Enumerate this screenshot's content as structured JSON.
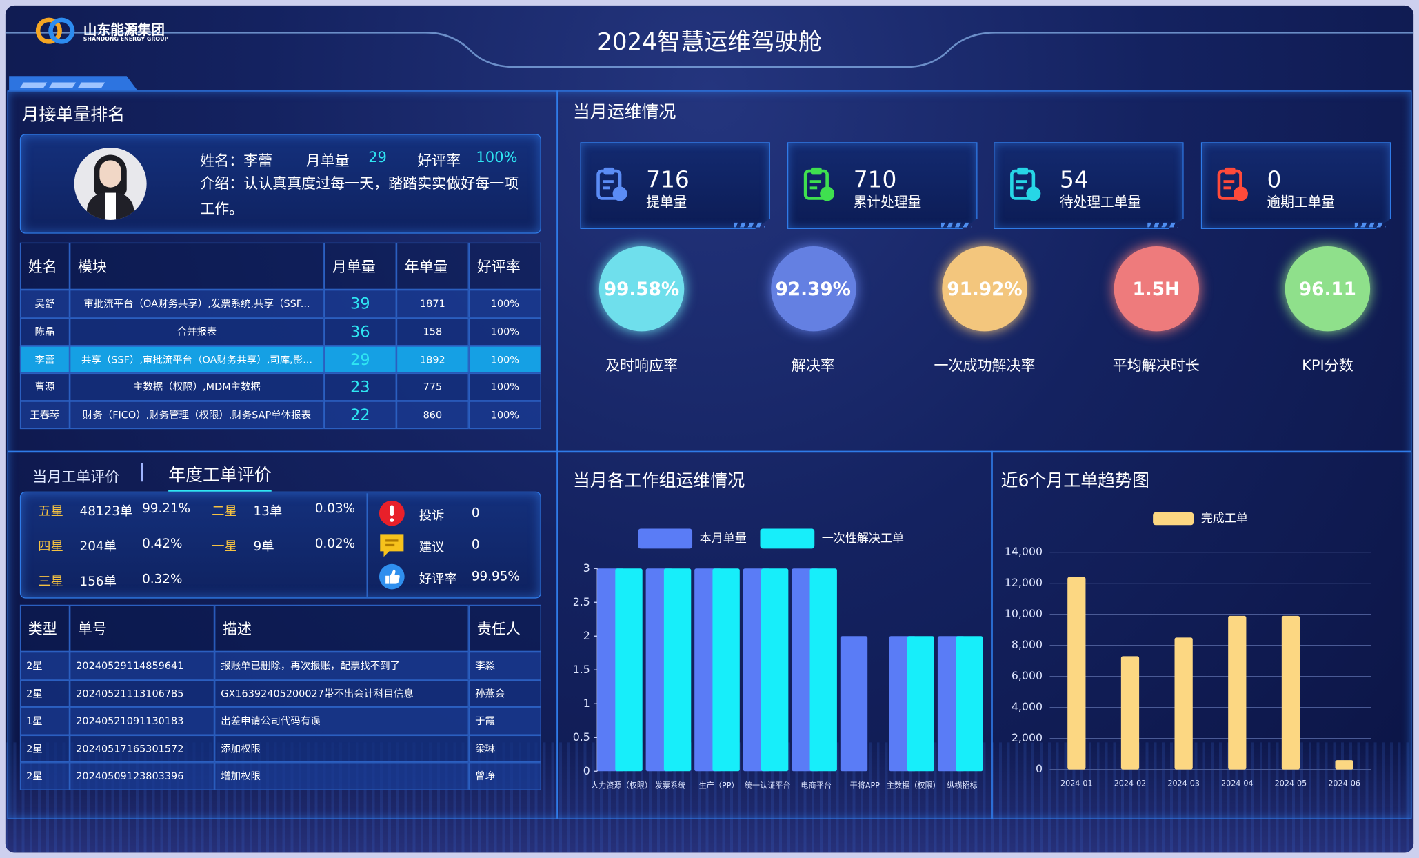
{
  "header": {
    "logo_cn": "山东能源集团",
    "logo_en": "SHANDONG ENERGY GROUP",
    "title": "2024智慧运维驾驶舱"
  },
  "ranking": {
    "title": "月接单量排名",
    "profile": {
      "name_label": "姓名：",
      "name": "李蕾",
      "monthly_label": "月单量",
      "monthly": 29,
      "rating_label": "好评率",
      "rating": "100%",
      "intro_label": "介绍：",
      "intro": "认认真真度过每一天，踏踏实实做好每一项工作。"
    },
    "table": {
      "columns": [
        "姓名",
        "模块",
        "月单量",
        "年单量",
        "好评率"
      ],
      "rows": [
        [
          "吴舒",
          "审批流平台（OA财务共享）,发票系统,共享（SSF...",
          39,
          1871,
          "100%"
        ],
        [
          "陈晶",
          "合并报表",
          36,
          158,
          "100%"
        ],
        [
          "李蕾",
          "共享（SSF）,审批流平台（OA财务共享）,司库,影...",
          29,
          1892,
          "100%"
        ],
        [
          "曹源",
          "主数据（权限）,MDM主数据",
          23,
          775,
          "100%"
        ],
        [
          "王春琴",
          "财务（FICO）,财务管理（权限）,财务SAP单体报表",
          22,
          860,
          "100%"
        ]
      ]
    }
  },
  "evaluation": {
    "tabs": [
      "当月工单评价",
      "年度工单评价"
    ],
    "active_tab": 1,
    "stars": [
      {
        "level": "五星",
        "count": "48123单",
        "pct": "99.21%"
      },
      {
        "level": "二星",
        "count": "13单",
        "pct": "0.03%"
      },
      {
        "level": "四星",
        "count": "204单",
        "pct": "0.42%"
      },
      {
        "level": "一星",
        "count": "9单",
        "pct": "0.02%"
      },
      {
        "level": "三星",
        "count": "156单",
        "pct": "0.32%"
      }
    ],
    "feedback": [
      {
        "label": "投诉",
        "value": 0
      },
      {
        "label": "建议",
        "value": 0
      },
      {
        "label": "好评率",
        "value": "99.95%"
      }
    ],
    "table": {
      "columns": [
        "类型",
        "单号",
        "描述",
        "责任人"
      ],
      "rows": [
        [
          "2星",
          "20240529114859641",
          "报账单已删除，再次报账，配票找不到了",
          "李淼"
        ],
        [
          "2星",
          "20240521113106785",
          "GX16392405200027带不出会计科目信息",
          "孙燕会"
        ],
        [
          "1星",
          "20240521091130183",
          "出差申请公司代码有误",
          "于霞"
        ],
        [
          "2星",
          "20240517165301572",
          "添加权限",
          "梁琳"
        ],
        [
          "2星",
          "20240509123803396",
          "增加权限",
          "曾琤"
        ]
      ]
    }
  },
  "monthly_ops": {
    "title": "当月运维情况",
    "cards": [
      {
        "value": 716,
        "label": "提单量",
        "color": "#5b8cf5"
      },
      {
        "value": 710,
        "label": "累计处理量",
        "color": "#3fe04f"
      },
      {
        "value": 54,
        "label": "待处理工单量",
        "color": "#27d6e6"
      },
      {
        "value": 0,
        "label": "逾期工单量",
        "color": "#ff4a3a"
      }
    ],
    "kpis": [
      {
        "value": "99.58%",
        "label": "及时响应率",
        "color": "#6fdfec"
      },
      {
        "value": "92.39%",
        "label": "解决率",
        "color": "#6480e2"
      },
      {
        "value": "91.92%",
        "label": "一次成功解决率",
        "color": "#f3c67d"
      },
      {
        "value": "1.5H",
        "label": "平均解决时长",
        "color": "#ee7b7c"
      },
      {
        "value": "96.11",
        "label": "KPI分数",
        "color": "#8fe08b"
      }
    ]
  },
  "group_chart": {
    "type": "bar",
    "title": "当月各工作组运维情况",
    "categories": [
      "人力资源（权限）",
      "发票系统",
      "生产（PP）",
      "统一认证平台",
      "电商平台",
      "干将APP",
      "主数据（权限）",
      "纵横招标"
    ],
    "series": [
      {
        "name": "本月单量",
        "color": "#5a7cf6",
        "values": [
          3,
          3,
          3,
          3,
          3,
          2,
          2,
          2
        ]
      },
      {
        "name": "一次性解决工单",
        "color": "#17eefa",
        "values": [
          3,
          3,
          3,
          3,
          3,
          0,
          2,
          2
        ]
      }
    ],
    "ylim": [
      0,
      3
    ],
    "yticks": [
      0,
      0.5,
      1,
      1.5,
      2,
      2.5,
      3
    ]
  },
  "trend_chart": {
    "type": "bar",
    "title": "近6个月工单趋势图",
    "categories": [
      "2024-01",
      "2024-02",
      "2024-03",
      "2024-04",
      "2024-05",
      "2024-06"
    ],
    "series": [
      {
        "name": "完成工单",
        "color": "#fcd782",
        "values": [
          12400,
          7300,
          8500,
          9900,
          9900,
          600
        ]
      }
    ],
    "ylim": [
      0,
      14000
    ],
    "yticks": [
      0,
      {
        "value": 2000,
        "label": "2,000"
      },
      {
        "value": 4000,
        "label": "4,000"
      },
      {
        "value": 6000,
        "label": "6,000"
      },
      {
        "value": 8000,
        "label": "8,000"
      },
      {
        "value": 10000,
        "label": "10,000"
      },
      {
        "value": 12000,
        "label": "12,000"
      },
      {
        "value": 14000,
        "label": "14,000"
      }
    ],
    "grid": true
  }
}
